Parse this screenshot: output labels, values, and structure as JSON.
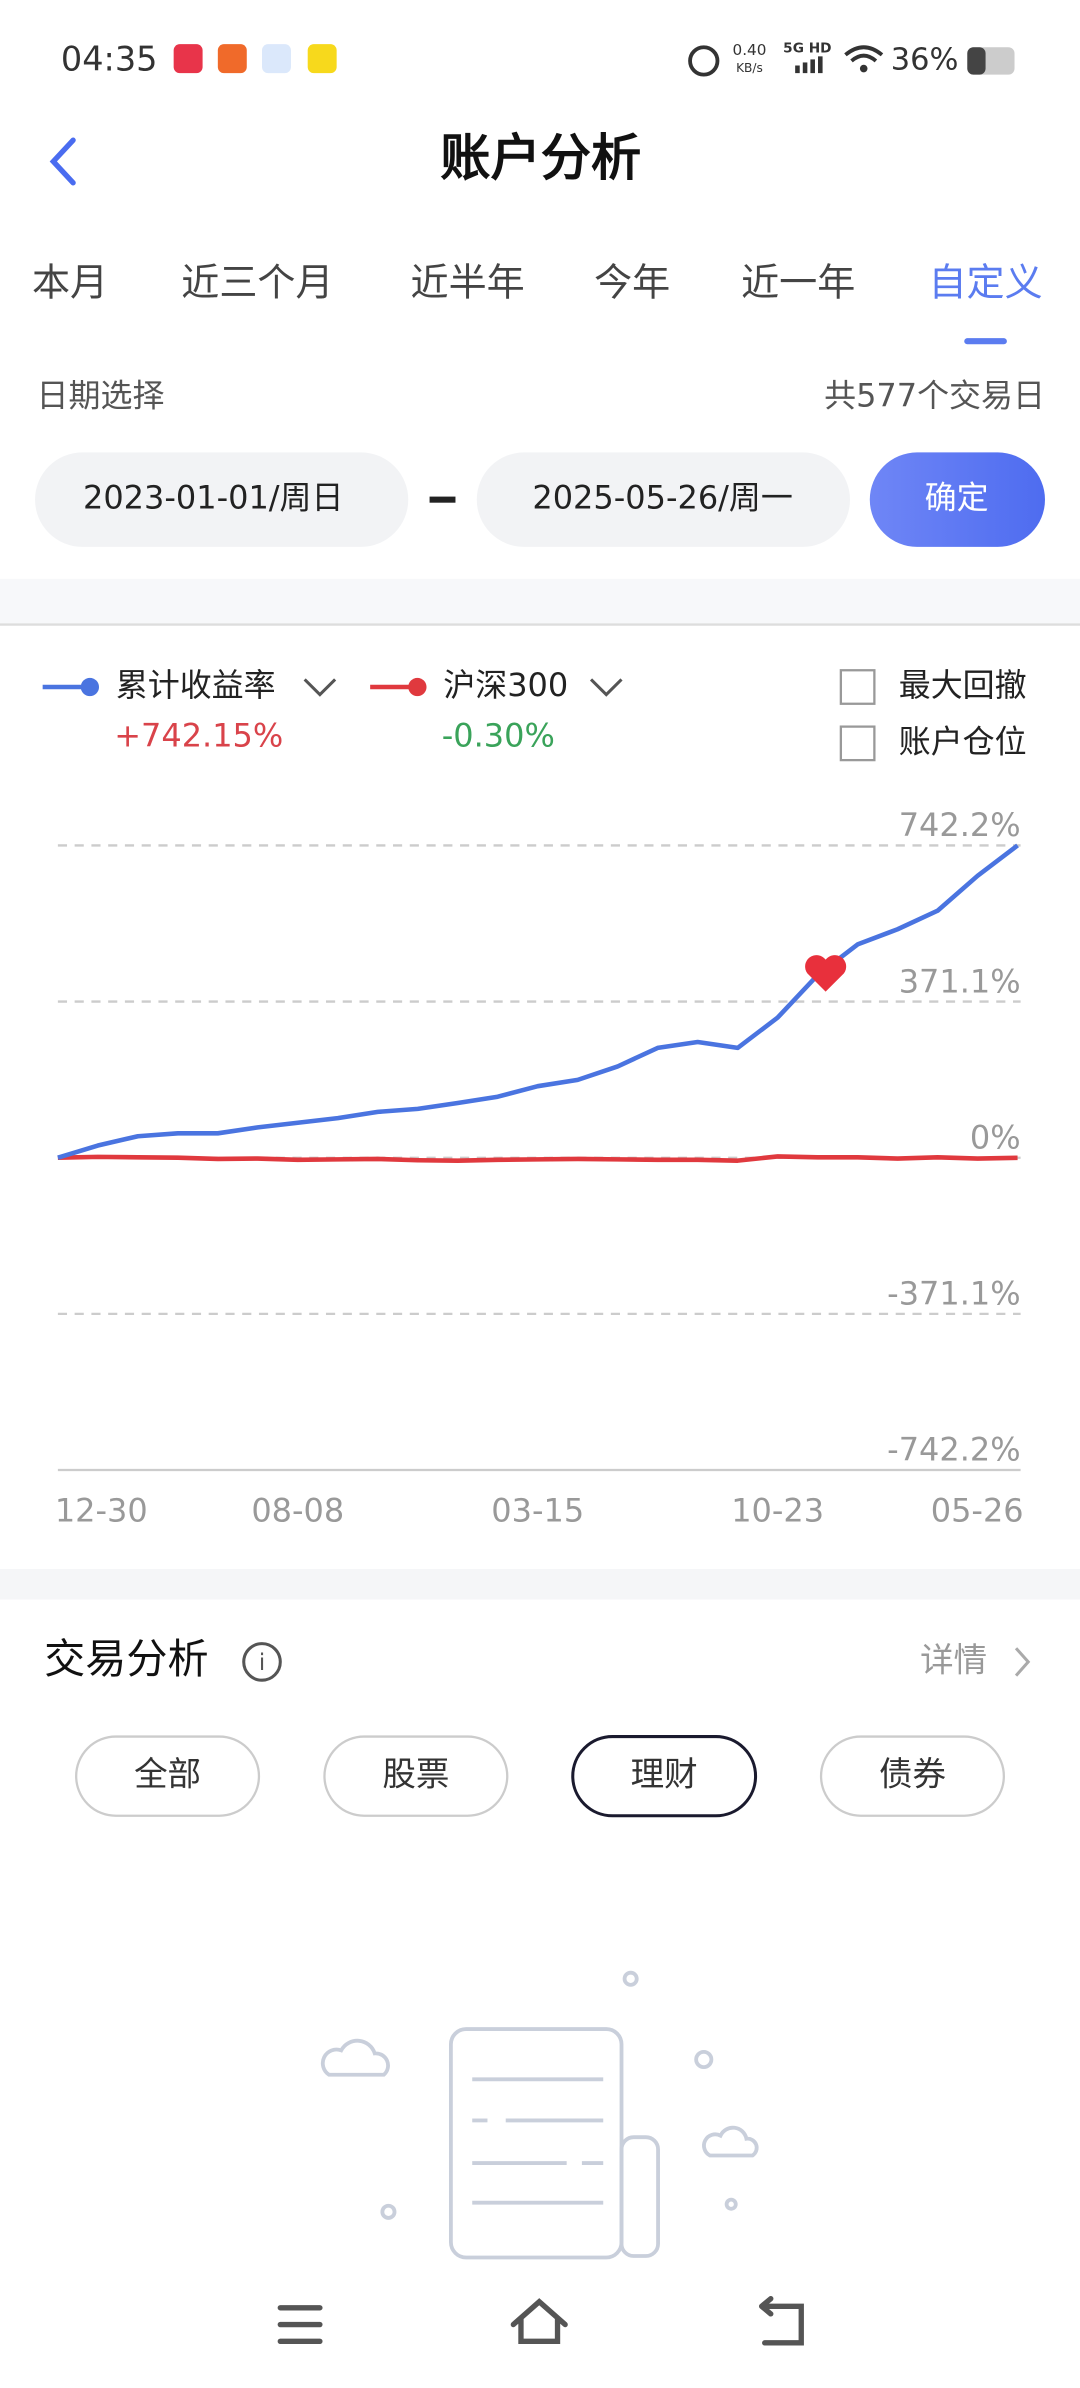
{
  "status_bar": {
    "time": "04:35",
    "net_speed": "0.40",
    "net_unit": "KB/s",
    "network": "5G HD",
    "battery": "36%"
  },
  "header": {
    "title": "账户分析"
  },
  "tabs": {
    "items": [
      "本月",
      "近三个月",
      "近半年",
      "今年",
      "近一年",
      "自定义"
    ],
    "active": 5
  },
  "date_select": {
    "label": "日期选择",
    "trading_days": "共577个交易日",
    "start": "2023-01-01/周日",
    "end": "2025-05-26/周一",
    "confirm": "确定"
  },
  "chart_data": {
    "type": "line",
    "categories": [
      "12-30",
      null,
      null,
      null,
      null,
      null,
      "08-08",
      null,
      null,
      null,
      null,
      null,
      "03-15",
      null,
      null,
      null,
      null,
      null,
      "10-23",
      null,
      null,
      null,
      null,
      null,
      "05-26"
    ],
    "series": [
      {
        "name": "累计收益率",
        "color": "#4a74e0",
        "summary_label": "+742.15%",
        "summary_color": "#d9434a",
        "values": [
          0,
          29,
          51,
          58,
          58,
          72,
          83,
          94,
          109,
          116,
          130,
          145,
          170,
          185,
          217,
          261,
          275,
          261,
          333,
          434,
          507,
          543,
          587,
          670,
          742.15
        ]
      },
      {
        "name": "沪深300",
        "color": "#e0393e",
        "summary_label": "-0.30%",
        "summary_color": "#3aa35a",
        "values": [
          0,
          2,
          1,
          0,
          -3,
          -2,
          -5,
          -4,
          -3,
          -6,
          -7,
          -5,
          -4,
          -3,
          -4,
          -5,
          -5,
          -7,
          3,
          1,
          1,
          -2,
          1,
          -2,
          -0.3
        ]
      }
    ],
    "ylim": [
      -742.2,
      742.2
    ],
    "yticks": [
      {
        "value": -742.2,
        "label": "-742.2%"
      },
      {
        "value": -371.1,
        "label": "-371.1%"
      },
      {
        "value": 0,
        "label": "0%"
      },
      {
        "value": 371.1,
        "label": "371.1%"
      },
      {
        "value": 742.2,
        "label": "742.2%"
      }
    ],
    "grid": true,
    "checkboxes": [
      "最大回撤",
      "账户仓位"
    ]
  },
  "trade_analysis": {
    "title": "交易分析",
    "details": "详情",
    "filters": [
      "全部",
      "股票",
      "理财",
      "债券"
    ],
    "selected_filter": 2
  }
}
